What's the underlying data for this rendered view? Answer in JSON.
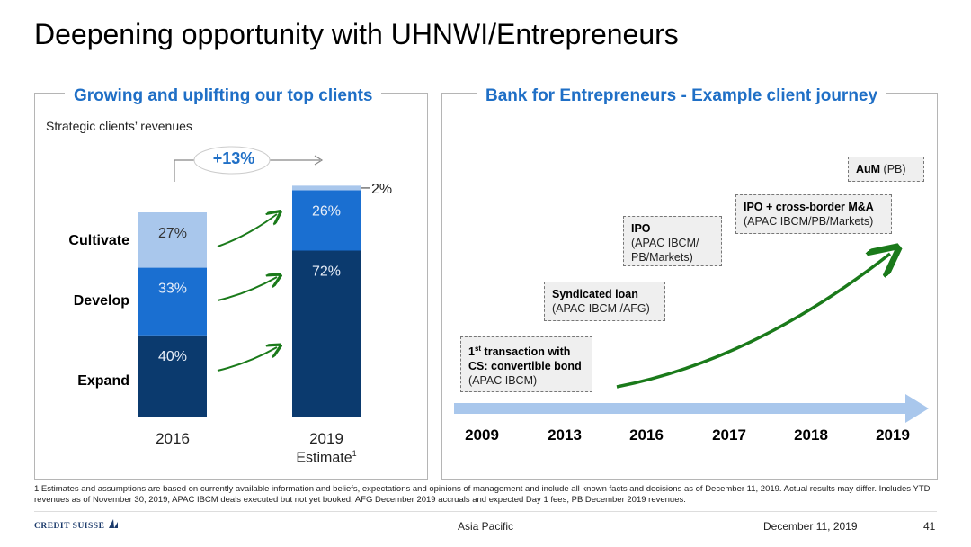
{
  "title": "Deepening opportunity with UHNWI/Entrepreneurs",
  "left_panel": {
    "heading": "Growing and uplifting our top clients",
    "subtitle": "Strategic clients’ revenues",
    "growth_label": "+13%",
    "segment_labels": [
      "Cultivate",
      "Develop",
      "Expand"
    ]
  },
  "chart_data": {
    "type": "bar",
    "stacked": true,
    "categories": [
      "2016",
      "2019"
    ],
    "category_note": "Estimate",
    "category_note_footnote": "1",
    "series": [
      {
        "name": "Expand",
        "values": [
          40,
          72
        ],
        "color": "#0b3a6e"
      },
      {
        "name": "Develop",
        "values": [
          33,
          26
        ],
        "color": "#1a6fd1"
      },
      {
        "name": "Cultivate",
        "values": [
          27,
          2
        ],
        "color": "#a9c7ec"
      }
    ],
    "value_labels": [
      [
        "40%",
        "72%"
      ],
      [
        "33%",
        "26%"
      ],
      [
        "27%",
        "2%"
      ]
    ]
  },
  "right_panel": {
    "heading": "Bank for Entrepreneurs - Example client journey",
    "years": [
      "2009",
      "2013",
      "2016",
      "2017",
      "2018",
      "2019"
    ],
    "boxes": [
      {
        "title_pre": "1",
        "title_sup": "st",
        "title_post": " transaction with",
        "title2": "CS: convertible bond",
        "detail": "(APAC IBCM)"
      },
      {
        "title": "Syndicated loan",
        "detail": "(APAC IBCM /AFG)"
      },
      {
        "title": "IPO",
        "detail": "(APAC IBCM/",
        "detail2": "PB/Markets)"
      },
      {
        "title": "IPO + cross-border M&A",
        "detail": "(APAC IBCM/PB/Markets)"
      },
      {
        "title": "AuM",
        "detail": " (PB)"
      }
    ]
  },
  "footnote": "1 Estimates and assumptions are based on currently available information and beliefs, expectations and opinions of management and include all known facts and decisions as of December 11, 2019. Actual results may differ. Includes YTD revenues as of November 30, 2019, APAC IBCM deals executed but not yet booked, AFG December 2019 accruals and expected Day 1 fees, PB December 2019 revenues.",
  "footer": {
    "logo": "CREDIT SUISSE",
    "region": "Asia Pacific",
    "date": "December 11, 2019",
    "page": "41"
  },
  "colors": {
    "accent_blue": "#1f6fc6",
    "arrow_green": "#1a7a1a",
    "timeline_blue": "#a9c7ec"
  }
}
